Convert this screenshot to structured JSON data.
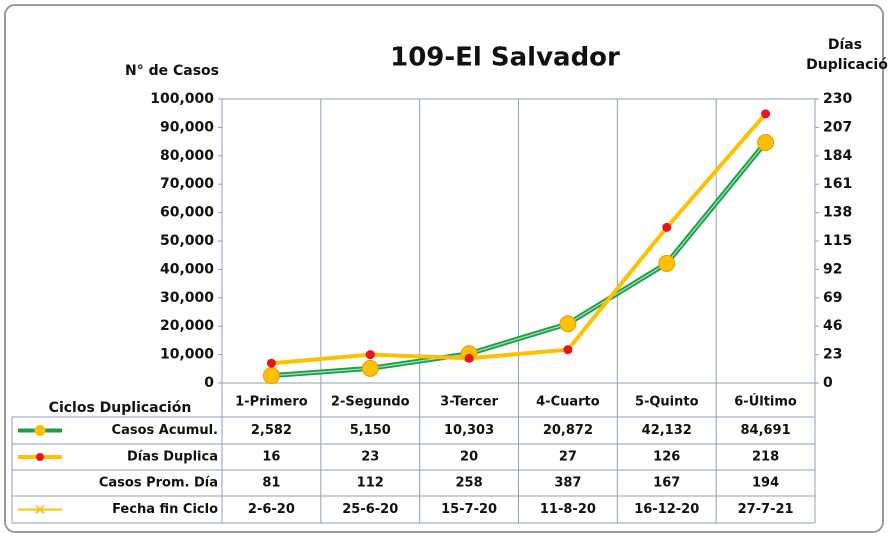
{
  "chart_data": {
    "type": "line",
    "title": "109-El Salvador",
    "ylabel": "N° de Casos",
    "y2label": [
      "Días",
      "Duplicación"
    ],
    "table_title": "Ciclos Duplicación",
    "categories": [
      "1-Primero",
      "2-Segundo",
      "3-Tercer",
      "4-Cuarto",
      "5-Quinto",
      "6-Último"
    ],
    "series": [
      {
        "name": "Casos Acumul.",
        "color": "#1e9e48",
        "marker_color": "#ffc000",
        "values": [
          2582,
          5150,
          10303,
          20872,
          42132,
          84691
        ],
        "value_labels": [
          "2,582",
          "5,150",
          "10,303",
          "20,872",
          "42,132",
          "84,691"
        ]
      },
      {
        "name": "Días Duplica",
        "color": "#ffc000",
        "marker_color": "#e8141b",
        "axis": "y2",
        "values": [
          16,
          23,
          20,
          27,
          126,
          218
        ]
      }
    ],
    "table_rows": [
      {
        "name": "Casos Prom. Día",
        "values": [
          81,
          112,
          258,
          387,
          167,
          194
        ]
      },
      {
        "name": "Fecha fin Ciclo",
        "color": "#ffc000",
        "labels": [
          "2-6-20",
          "25-6-20",
          "15-7-20",
          "11-8-20",
          "16-12-20",
          "27-7-21"
        ]
      }
    ],
    "ylim": [
      0,
      100000
    ],
    "yticks": [
      0,
      {
        "value": 10000,
        "label": "10,000"
      },
      {
        "value": 20000,
        "label": "20,000"
      },
      {
        "value": 30000,
        "label": "30,000"
      },
      {
        "value": 40000,
        "label": "40,000"
      },
      {
        "value": 50000,
        "label": "50,000"
      },
      {
        "value": 60000,
        "label": "60,000"
      },
      {
        "value": 70000,
        "label": "70,000"
      },
      {
        "value": 80000,
        "label": "80,000"
      },
      {
        "value": 90000,
        "label": "90,000"
      },
      {
        "value": 100000,
        "label": "100,000"
      }
    ],
    "y2lim": [
      0,
      230
    ],
    "y2ticks": [
      0,
      23,
      46,
      69,
      92,
      115,
      138,
      161,
      184,
      207,
      230
    ],
    "grid": false
  }
}
